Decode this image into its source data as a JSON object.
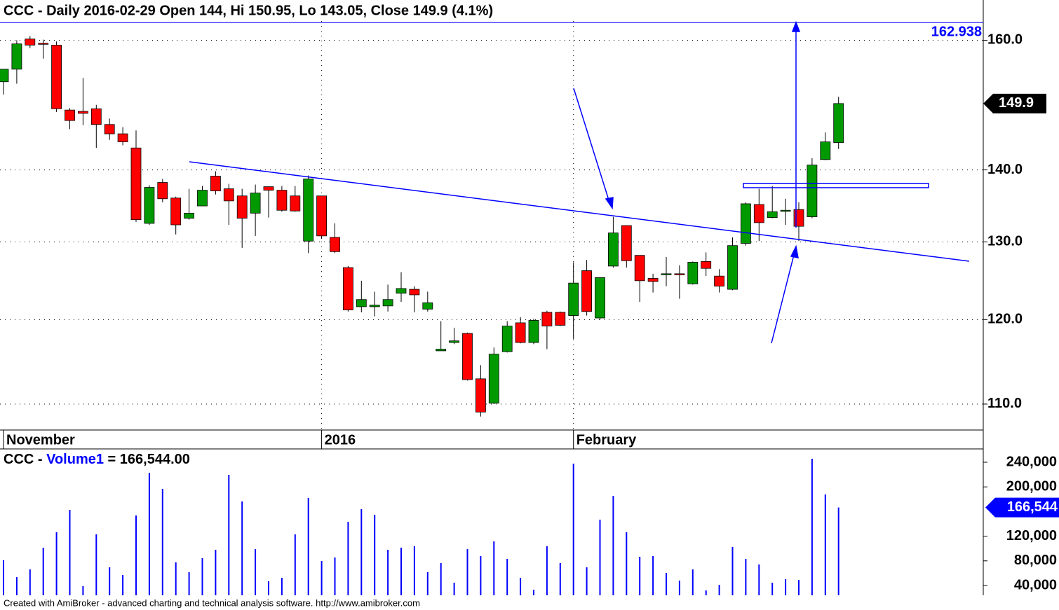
{
  "chart_data": [
    {
      "type": "candlestick",
      "title": "CCC - Daily 2016-02-29 Open 144, Hi 150.95, Lo 143.05, Close 149.9 (4.1%)",
      "categories": [
        "November",
        null,
        null,
        null,
        null,
        null,
        null,
        null,
        null,
        null,
        null,
        null,
        null,
        null,
        null,
        null,
        null,
        null,
        null,
        null,
        null,
        null,
        null,
        null,
        "2016",
        null,
        null,
        null,
        null,
        null,
        null,
        null,
        null,
        null,
        null,
        null,
        null,
        null,
        null,
        null,
        null,
        null,
        null,
        "February",
        null,
        null,
        null,
        null,
        null,
        null,
        null,
        null,
        null,
        null,
        null,
        null,
        null,
        null,
        null,
        null,
        null,
        null,
        null,
        null
      ],
      "open": [
        153.3,
        155.3,
        160.2,
        159.5,
        159.2,
        148.9,
        148.7,
        149.1,
        146.7,
        145.3,
        143.2,
        132.5,
        138.2,
        136.0,
        133.2,
        134.9,
        139.1,
        137.3,
        136.3,
        133.9,
        137.6,
        137.1,
        136.3,
        130.1,
        136.3,
        130.6,
        126.6,
        121.6,
        121.6,
        121.7,
        123.3,
        123.8,
        121.3,
        116.2,
        117.2,
        118.3,
        112.9,
        110.1,
        116.1,
        119.6,
        117.2,
        120.9,
        120.9,
        120.5,
        126.2,
        120.2,
        126.8,
        132.2,
        128.2,
        125.2,
        125.7,
        125.8,
        124.5,
        127.4,
        125.5,
        123.8,
        129.8,
        135.1,
        133.3,
        134.2,
        134.4,
        133.4,
        141.5,
        144
      ],
      "high": [
        155.3,
        160.0,
        160.7,
        160.1,
        159.8,
        149.2,
        153.9,
        149.7,
        147.6,
        146.3,
        145.8,
        137.8,
        138.7,
        136.2,
        137.3,
        137.7,
        139.8,
        138.0,
        137.3,
        137.9,
        137.6,
        137.7,
        137.7,
        139.2,
        136.3,
        132.5,
        126.8,
        124.9,
        123.5,
        124.4,
        126.0,
        124.2,
        123.5,
        119.8,
        119.0,
        118.4,
        114.5,
        116.6,
        119.8,
        120.3,
        120.1,
        121.1,
        121.0,
        127.3,
        127.6,
        125.3,
        133.4,
        132.2,
        128.2,
        125.8,
        128.0,
        126.9,
        127.4,
        128.6,
        126.4,
        130.6,
        135.4,
        137.3,
        137.7,
        135.9,
        135.4,
        141.7,
        145.5,
        150.95
      ],
      "low": [
        151.3,
        153.0,
        158.7,
        157.0,
        148.6,
        146.0,
        146.6,
        143.2,
        144.4,
        143.6,
        132.7,
        132.3,
        135.4,
        131.0,
        133.0,
        134.9,
        136.5,
        132.3,
        129.2,
        130.8,
        133.3,
        134.1,
        134.1,
        128.5,
        130.4,
        128.5,
        121.0,
        120.9,
        120.4,
        121.0,
        122.2,
        120.9,
        121.0,
        116.2,
        117.0,
        112.7,
        108.6,
        110.0,
        116.0,
        117.1,
        117.0,
        116.4,
        119.2,
        117.6,
        120.5,
        120.0,
        126.6,
        126.6,
        122.2,
        123.4,
        124.2,
        122.6,
        124.4,
        125.5,
        123.4,
        123.7,
        129.5,
        130.1,
        133.2,
        132.3,
        130.1,
        133.2,
        141.4,
        143.05
      ],
      "close": [
        155.3,
        159.4,
        159.2,
        159.4,
        149.1,
        147.3,
        148.4,
        146.7,
        145.3,
        144.1,
        133.0,
        137.5,
        135.9,
        132.3,
        133.9,
        137.1,
        137.0,
        135.6,
        133.2,
        136.7,
        137.1,
        134.3,
        134.2,
        138.7,
        130.8,
        128.7,
        121.2,
        122.5,
        121.8,
        122.5,
        123.9,
        123.1,
        122.1,
        116.4,
        117.4,
        112.8,
        109.1,
        115.8,
        119.2,
        117.2,
        119.9,
        119.2,
        119.3,
        124.6,
        121.0,
        125.3,
        131.2,
        127.5,
        124.9,
        124.8,
        125.8,
        125.7,
        127.3,
        126.5,
        124.2,
        129.5,
        135.2,
        132.6,
        134.1,
        134.3,
        132.1,
        140.7,
        144.1,
        149.9
      ],
      "up_color": "#009a00",
      "down_color": "#ff0000",
      "log_scale": true,
      "ylim": [
        107.1,
        163.2
      ],
      "yticks": [
        {
          "value": 110,
          "label": "110.0"
        },
        {
          "value": 120,
          "label": "120.0"
        },
        {
          "value": 130,
          "label": "130.0"
        },
        {
          "value": 140,
          "label": "140.0"
        },
        {
          "value": 160,
          "label": "160.0"
        }
      ],
      "grid": true,
      "price_target": 162.938,
      "target_color": "#0000ff"
    },
    {
      "type": "bar",
      "label_prefix": "CCC -",
      "name": "Volume1",
      "label_value": "= 166,544.00",
      "color": "#0000ff",
      "values": [
        80900,
        53600,
        66100,
        101400,
        126400,
        162700,
        38900,
        123000,
        69500,
        57000,
        153600,
        223000,
        196800,
        77500,
        61600,
        84300,
        98000,
        219500,
        176400,
        99000,
        46800,
        52500,
        123000,
        182000,
        79800,
        85500,
        143400,
        163900,
        154800,
        98000,
        101400,
        103600,
        61600,
        76400,
        44500,
        99000,
        87700,
        111600,
        83200,
        52500,
        33200,
        103600,
        76400,
        237700,
        69500,
        146800,
        185500,
        126400,
        86600,
        87700,
        60500,
        48000,
        66100,
        32000,
        41100,
        102500,
        83200,
        74100,
        44500,
        50200,
        49100,
        245700,
        187700,
        166544
      ],
      "last_label": {
        "value": 166544,
        "label": "166,544"
      },
      "ylim": [
        24100,
        261600
      ],
      "yticks": [
        {
          "value": 40000,
          "label": "40,000"
        },
        {
          "value": 80000,
          "label": "80,000"
        },
        {
          "value": 120000,
          "label": "120,000"
        },
        {
          "value": 200000,
          "label": "200,000"
        },
        {
          "value": 240000,
          "label": "240,000"
        }
      ]
    }
  ],
  "footer": "Created with AmiBroker - advanced charting and technical analysis software. http://www.amibroker.com"
}
